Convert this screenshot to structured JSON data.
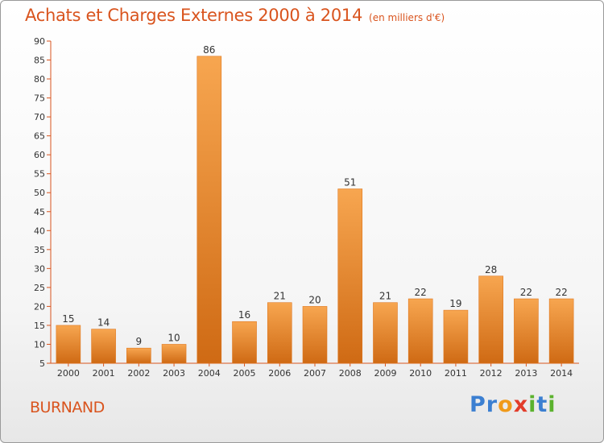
{
  "header": {
    "title": "Achats et Charges Externes 2000 à 2014",
    "subtitle": "(en milliers d'€)"
  },
  "footer": {
    "commune": "BURNAND",
    "logo_letters": [
      {
        "ch": "P",
        "color": "#3b7fd1"
      },
      {
        "ch": "r",
        "color": "#3b7fd1"
      },
      {
        "ch": "o",
        "color": "#f09a1a"
      },
      {
        "ch": "x",
        "color": "#e23c2a"
      },
      {
        "ch": "i",
        "color": "#5bb22e"
      },
      {
        "ch": "t",
        "color": "#3b7fd1"
      },
      {
        "ch": "i",
        "color": "#5bb22e"
      }
    ]
  },
  "chart_data": {
    "type": "bar",
    "title": "Achats et Charges Externes 2000 à 2014",
    "subtitle": "(en milliers d'€)",
    "xlabel": "",
    "ylabel": "",
    "categories": [
      "2000",
      "2001",
      "2002",
      "2003",
      "2004",
      "2005",
      "2006",
      "2007",
      "2008",
      "2009",
      "2010",
      "2011",
      "2012",
      "2013",
      "2014"
    ],
    "values": [
      15,
      14,
      9,
      10,
      86,
      16,
      21,
      20,
      51,
      21,
      22,
      19,
      28,
      22,
      22
    ],
    "ylim": [
      5,
      90
    ],
    "yticks": [
      5,
      10,
      15,
      20,
      25,
      30,
      35,
      40,
      45,
      50,
      55,
      60,
      65,
      70,
      75,
      80,
      85,
      90
    ],
    "grid": false,
    "bar_color": "#f28f2c",
    "axis_color": "#d9541e"
  }
}
